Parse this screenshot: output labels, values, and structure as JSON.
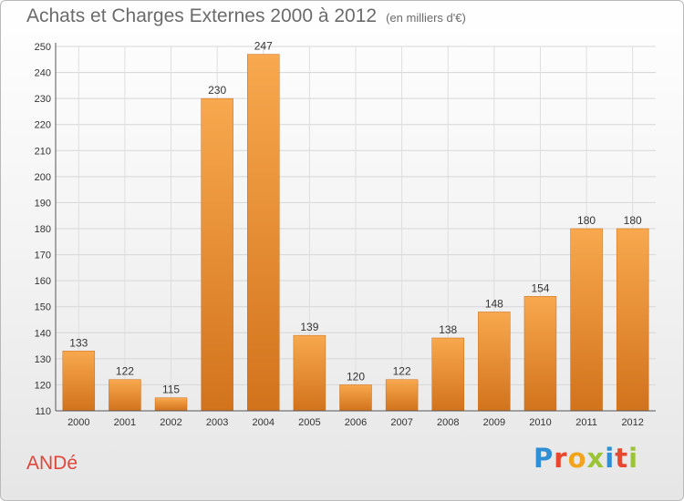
{
  "title": "Achats et Charges Externes 2000 à 2012",
  "subtitle": "(en milliers d'€)",
  "town": "ANDé",
  "logo": [
    "P",
    "r",
    "o",
    "x",
    "i",
    "t",
    "i"
  ],
  "colors": {
    "bar_top": "#f8a84e",
    "bar_bottom": "#d2731c",
    "title": "#6b6b6b",
    "town": "#e0453a"
  },
  "chart_data": {
    "type": "bar",
    "title": "Achats et Charges Externes 2000 à 2012",
    "subtitle": "(en milliers d'€)",
    "xlabel": "",
    "ylabel": "",
    "categories": [
      "2000",
      "2001",
      "2002",
      "2003",
      "2004",
      "2005",
      "2006",
      "2007",
      "2008",
      "2009",
      "2010",
      "2011",
      "2012"
    ],
    "values": [
      133,
      122,
      115,
      230,
      247,
      139,
      120,
      122,
      138,
      148,
      154,
      180,
      180
    ],
    "ylim": [
      110,
      250
    ],
    "yticks": [
      110,
      120,
      130,
      140,
      150,
      160,
      170,
      180,
      190,
      200,
      210,
      220,
      230,
      240,
      250
    ],
    "grid": true,
    "legend": "none"
  }
}
